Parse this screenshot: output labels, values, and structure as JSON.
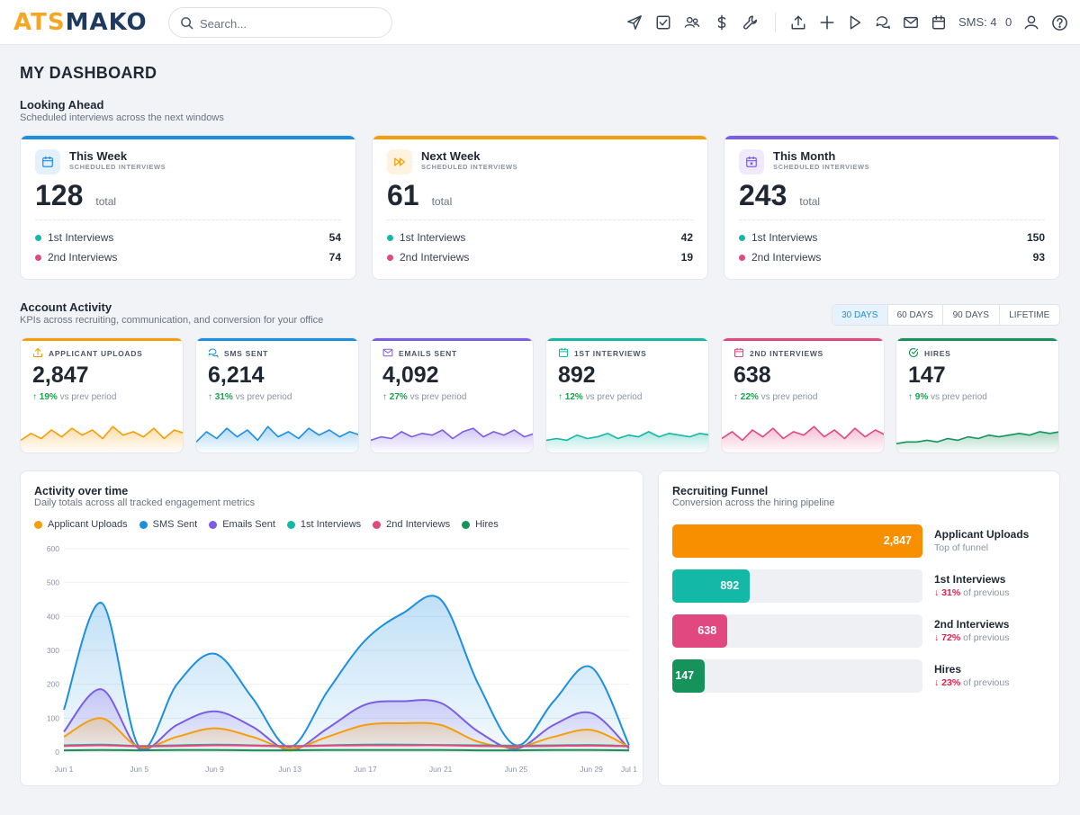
{
  "app": {
    "logo_part1": "ATS",
    "logo_part2": "MAKO",
    "search_placeholder": "Search...",
    "sms_label": "SMS: 4",
    "notif_count": "0"
  },
  "toolbar_icons": [
    "send-icon",
    "checkbox-icon",
    "users-icon",
    "dollar-icon",
    "wrench-icon",
    "upload-icon",
    "plus-icon",
    "play-icon",
    "chat-icon",
    "mail-icon",
    "calendar-icon",
    "user-icon",
    "help-icon"
  ],
  "page": {
    "title": "MY DASHBOARD",
    "looking_title": "Looking Ahead",
    "looking_sub": "Scheduled interviews across the next windows",
    "activity_title": "Account Activity",
    "activity_sub": "KPIs across recruiting, communication, and conversion for your office"
  },
  "schedule_cards": [
    {
      "title": "This Week",
      "subtitle": "SCHEDULED INTERVIEWS",
      "total": "128",
      "total_label": "total",
      "accent": "#1d8fe0",
      "icon": "calendar-icon",
      "rows": [
        {
          "label": "1st Interviews",
          "value": "54",
          "color": "#14b8a6"
        },
        {
          "label": "2nd Interviews",
          "value": "74",
          "color": "#e0487f"
        }
      ]
    },
    {
      "title": "Next Week",
      "subtitle": "SCHEDULED INTERVIEWS",
      "total": "61",
      "total_label": "total",
      "accent": "#f59e0b",
      "icon": "fast-forward-icon",
      "rows": [
        {
          "label": "1st Interviews",
          "value": "42",
          "color": "#14b8a6"
        },
        {
          "label": "2nd Interviews",
          "value": "19",
          "color": "#e0487f"
        }
      ]
    },
    {
      "title": "This Month",
      "subtitle": "SCHEDULED INTERVIEWS",
      "total": "243",
      "total_label": "total",
      "accent": "#7c5ce6",
      "icon": "calendar-month-icon",
      "rows": [
        {
          "label": "1st Interviews",
          "value": "150",
          "color": "#14b8a6"
        },
        {
          "label": "2nd Interviews",
          "value": "93",
          "color": "#e0487f"
        }
      ]
    }
  ],
  "periods": {
    "options": [
      "30 DAYS",
      "60 DAYS",
      "90 DAYS",
      "LIFETIME"
    ],
    "active": "30 DAYS"
  },
  "kpis": [
    {
      "label": "APPLICANT UPLOADS",
      "value": "2,847",
      "change": "19%",
      "change_text": "vs prev period",
      "color": "#f59e0b",
      "icon": "upload-icon",
      "spark": [
        4,
        8,
        5,
        10,
        6,
        11,
        7,
        10,
        5,
        12,
        7,
        9,
        6,
        11,
        5,
        10,
        8
      ]
    },
    {
      "label": "SMS SENT",
      "value": "6,214",
      "change": "31%",
      "change_text": "vs prev period",
      "color": "#1d8fe0",
      "icon": "chat-icon",
      "spark": [
        3,
        9,
        5,
        11,
        6,
        10,
        4,
        12,
        6,
        9,
        5,
        11,
        7,
        10,
        6,
        9,
        7
      ]
    },
    {
      "label": "EMAILS SENT",
      "value": "4,092",
      "change": "27%",
      "change_text": "vs prev period",
      "color": "#7c5ce6",
      "icon": "mail-icon",
      "spark": [
        4,
        6,
        5,
        9,
        6,
        8,
        7,
        10,
        5,
        9,
        11,
        6,
        9,
        7,
        10,
        6,
        8
      ]
    },
    {
      "label": "1ST INTERVIEWS",
      "value": "892",
      "change": "12%",
      "change_text": "vs prev period",
      "color": "#14b8a6",
      "icon": "calendar-icon",
      "spark": [
        4,
        5,
        4,
        7,
        5,
        6,
        8,
        5,
        7,
        6,
        9,
        6,
        8,
        7,
        6,
        8,
        7
      ]
    },
    {
      "label": "2ND INTERVIEWS",
      "value": "638",
      "change": "22%",
      "change_text": "vs prev period",
      "color": "#e0487f",
      "icon": "calendar-icon",
      "spark": [
        5,
        9,
        4,
        10,
        6,
        11,
        5,
        9,
        7,
        12,
        6,
        10,
        5,
        11,
        6,
        10,
        7
      ]
    },
    {
      "label": "HIRES",
      "value": "147",
      "change": "9%",
      "change_text": "vs prev period",
      "color": "#16935b",
      "icon": "check-circle-icon",
      "spark": [
        2,
        3,
        3,
        4,
        3,
        5,
        4,
        6,
        5,
        7,
        6,
        7,
        8,
        7,
        9,
        8,
        9
      ]
    }
  ],
  "activity_panel": {
    "title": "Activity over time",
    "subtitle": "Daily totals across all tracked engagement metrics"
  },
  "chart_data": {
    "type": "area",
    "ylim": [
      0,
      600
    ],
    "yticks": [
      0,
      100,
      200,
      300,
      400,
      500,
      600
    ],
    "x": [
      "Jun 1",
      "Jun 3",
      "Jun 5",
      "Jun 7",
      "Jun 9",
      "Jun 11",
      "Jun 13",
      "Jun 15",
      "Jun 17",
      "Jun 19",
      "Jun 21",
      "Jun 23",
      "Jun 25",
      "Jun 27",
      "Jun 29",
      "Jul 1"
    ],
    "xticks": [
      "Jun 1",
      "Jun 5",
      "Jun 9",
      "Jun 13",
      "Jun 17",
      "Jun 21",
      "Jun 25",
      "Jun 29",
      "Jul 1"
    ],
    "grid": true,
    "legend_position": "top-left",
    "series": [
      {
        "name": "Applicant Uploads",
        "color": "#f59e0b",
        "values": [
          45,
          100,
          15,
          45,
          70,
          45,
          10,
          45,
          80,
          85,
          80,
          30,
          15,
          45,
          65,
          15
        ]
      },
      {
        "name": "SMS Sent",
        "color": "#1d8fe0",
        "values": [
          125,
          440,
          15,
          200,
          290,
          160,
          15,
          180,
          330,
          410,
          450,
          200,
          20,
          150,
          250,
          20
        ]
      },
      {
        "name": "Emails Sent",
        "color": "#7c5ce6",
        "values": [
          60,
          185,
          10,
          80,
          120,
          75,
          5,
          70,
          140,
          150,
          145,
          60,
          10,
          80,
          115,
          10
        ]
      },
      {
        "name": "1st Interviews",
        "color": "#14b8a6",
        "values": [
          20,
          22,
          18,
          20,
          22,
          20,
          18,
          20,
          22,
          22,
          21,
          20,
          19,
          20,
          21,
          18
        ]
      },
      {
        "name": "2nd Interviews",
        "color": "#e0487f",
        "values": [
          18,
          20,
          17,
          18,
          20,
          19,
          17,
          19,
          20,
          20,
          20,
          18,
          17,
          18,
          19,
          17
        ]
      },
      {
        "name": "Hires",
        "color": "#16935b",
        "values": [
          5,
          6,
          5,
          6,
          6,
          5,
          5,
          6,
          6,
          6,
          6,
          5,
          5,
          6,
          6,
          5
        ]
      }
    ]
  },
  "funnel_panel": {
    "title": "Recruiting Funnel",
    "subtitle": "Conversion across the hiring pipeline"
  },
  "funnel": [
    {
      "name": "Applicant Uploads",
      "value": "2,847",
      "fraction": 1.0,
      "sub": "Top of funnel",
      "drop": "",
      "color": "#f78f00"
    },
    {
      "name": "1st Interviews",
      "value": "892",
      "fraction": 0.31,
      "sub": "of previous",
      "drop": "31%",
      "color": "#14b8a6"
    },
    {
      "name": "2nd Interviews",
      "value": "638",
      "fraction": 0.22,
      "sub": "of previous",
      "drop": "72%",
      "color": "#e0487f"
    },
    {
      "name": "Hires",
      "value": "147",
      "fraction": 0.13,
      "sub": "of previous",
      "drop": "23%",
      "color": "#16935b"
    }
  ]
}
